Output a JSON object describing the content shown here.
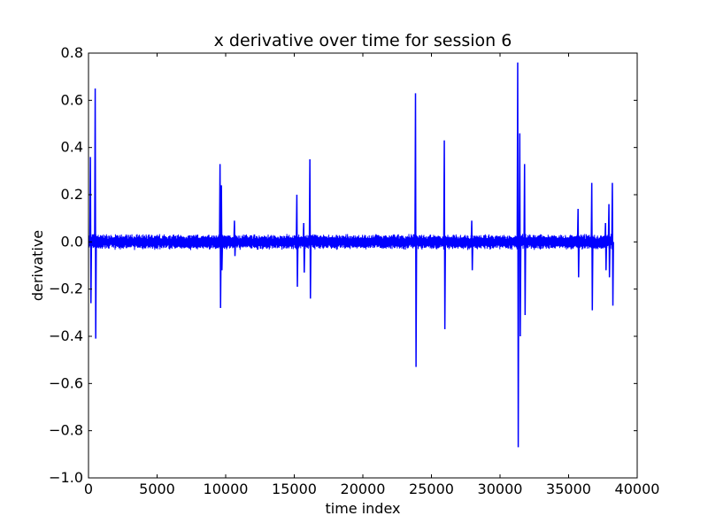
{
  "chart_data": {
    "type": "line",
    "title": "x derivative over time for session 6",
    "xlabel": "time index",
    "ylabel": "derivative",
    "xlim": [
      0,
      40000
    ],
    "ylim": [
      -1.0,
      0.8
    ],
    "xticks": [
      0,
      5000,
      10000,
      15000,
      20000,
      25000,
      30000,
      35000,
      40000
    ],
    "xtick_labels": [
      "0",
      "5000",
      "10000",
      "15000",
      "20000",
      "25000",
      "30000",
      "35000",
      "40000"
    ],
    "yticks": [
      -1.0,
      -0.8,
      -0.6,
      -0.4,
      -0.2,
      0.0,
      0.2,
      0.4,
      0.6,
      0.8
    ],
    "ytick_labels": [
      "−1.0",
      "−0.8",
      "−0.6",
      "−0.4",
      "−0.2",
      "0.0",
      "0.2",
      "0.4",
      "0.6",
      "0.8"
    ],
    "grid": false,
    "series": [
      {
        "color": "#0000ff",
        "x_range": [
          0,
          38200
        ],
        "noise_amplitude": 0.03,
        "spikes": [
          {
            "x": 100,
            "min": -0.26,
            "max": 0.36
          },
          {
            "x": 450,
            "min": -0.41,
            "max": 0.65
          },
          {
            "x": 9550,
            "min": -0.28,
            "max": 0.33
          },
          {
            "x": 9650,
            "min": -0.12,
            "max": 0.24
          },
          {
            "x": 10600,
            "min": -0.06,
            "max": 0.09
          },
          {
            "x": 15150,
            "min": -0.19,
            "max": 0.2
          },
          {
            "x": 15650,
            "min": -0.13,
            "max": 0.08
          },
          {
            "x": 16100,
            "min": -0.24,
            "max": 0.35
          },
          {
            "x": 23800,
            "min": -0.53,
            "max": 0.63
          },
          {
            "x": 25900,
            "min": -0.37,
            "max": 0.43
          },
          {
            "x": 27900,
            "min": -0.12,
            "max": 0.09
          },
          {
            "x": 31250,
            "min": -0.87,
            "max": 0.76
          },
          {
            "x": 31400,
            "min": -0.4,
            "max": 0.46
          },
          {
            "x": 31750,
            "min": -0.31,
            "max": 0.33
          },
          {
            "x": 35650,
            "min": -0.15,
            "max": 0.14
          },
          {
            "x": 36650,
            "min": -0.29,
            "max": 0.25
          },
          {
            "x": 37650,
            "min": -0.12,
            "max": 0.08
          },
          {
            "x": 37900,
            "min": -0.15,
            "max": 0.16
          },
          {
            "x": 38150,
            "min": -0.27,
            "max": 0.25
          }
        ]
      }
    ]
  }
}
